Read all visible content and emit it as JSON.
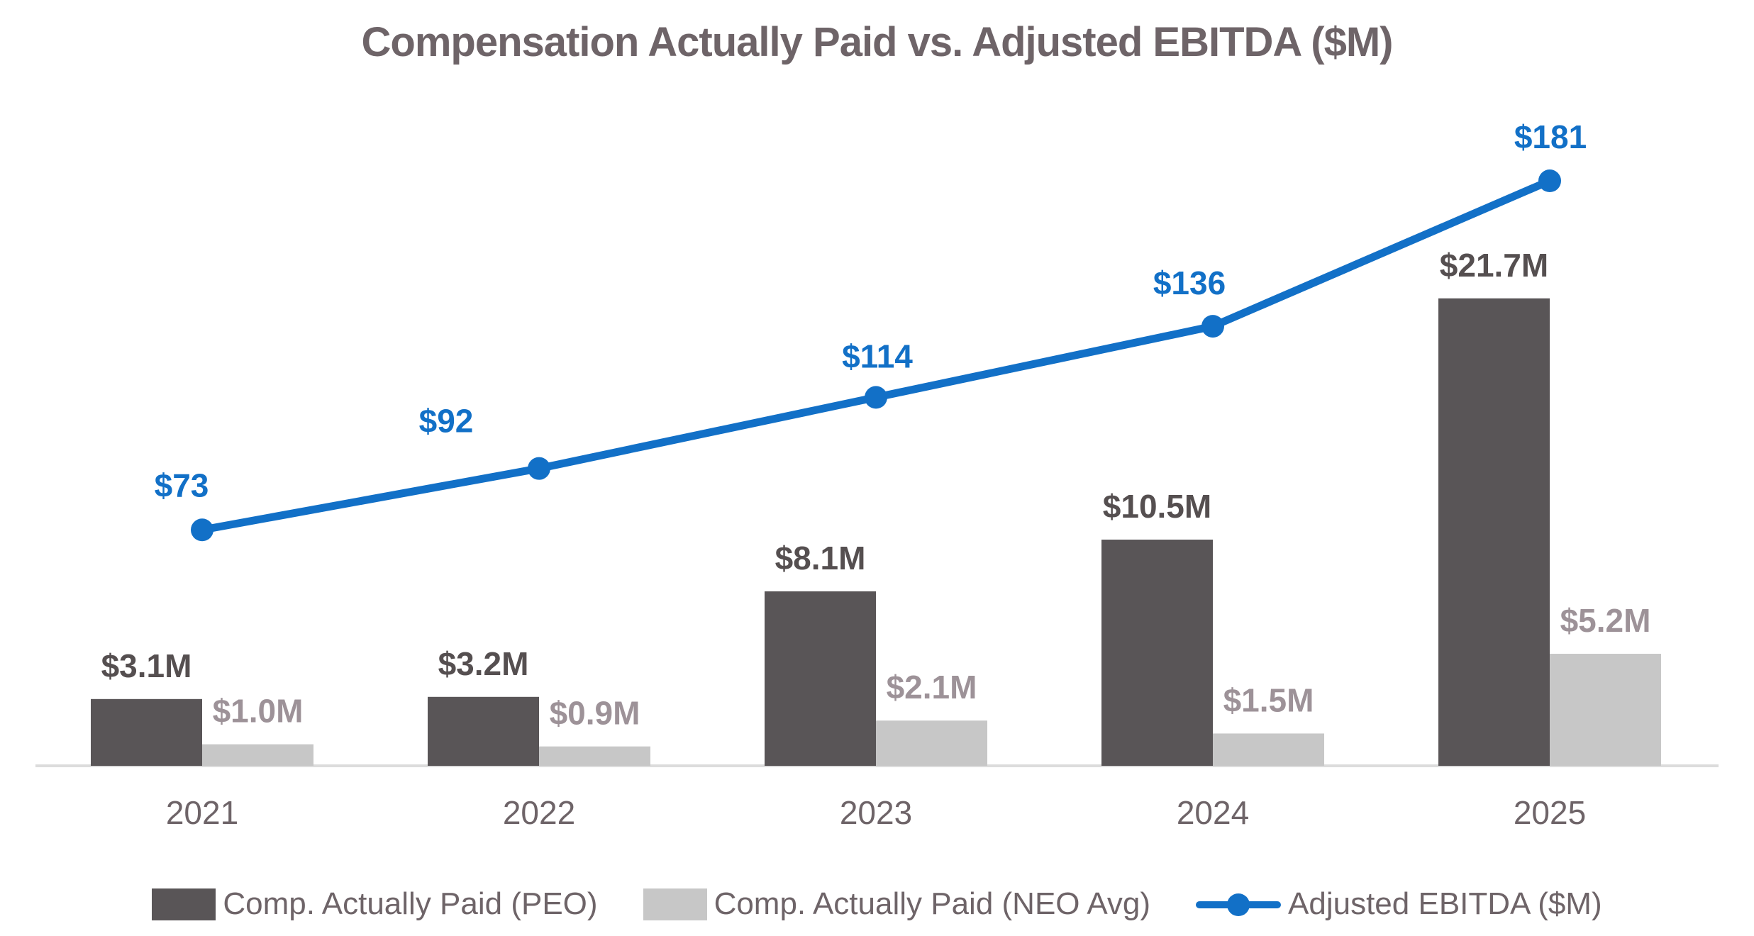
{
  "title": "Compensation Actually Paid vs. Adjusted EBITDA ($M)",
  "chart_data": {
    "type": "combo-bar-line",
    "title": "Compensation Actually Paid vs. Adjusted EBITDA ($M)",
    "xlabel": "",
    "ylabel": "",
    "grid": false,
    "legend_position": "bottom",
    "axis_line_color": "#dcdcdc",
    "text_color": "#6e6468",
    "categories": [
      "2021",
      "2022",
      "2023",
      "2024",
      "2025"
    ],
    "series": [
      {
        "name": "Comp. Actually Paid (PEO)",
        "type": "bar",
        "unit": "$M",
        "values": [
          3.1,
          3.2,
          8.1,
          10.5,
          21.7
        ],
        "labels": [
          "$3.1M",
          "$3.2M",
          "$8.1M",
          "$10.5M",
          "$21.7M"
        ],
        "color": "#595557",
        "label_color": "#554f50"
      },
      {
        "name": "Comp. Actually Paid (NEO Avg)",
        "type": "bar",
        "unit": "$M",
        "values": [
          1.0,
          0.9,
          2.1,
          1.5,
          5.2
        ],
        "labels": [
          "$1.0M",
          "$0.9M",
          "$2.1M",
          "$1.5M",
          "$5.2M"
        ],
        "color": "#c7c7c7",
        "label_color": "#9d9298"
      },
      {
        "name": "Adjusted EBITDA ($M)",
        "type": "line",
        "unit": "$M",
        "values": [
          73,
          92,
          114,
          136,
          181
        ],
        "labels": [
          "$73",
          "$92",
          "$114",
          "$136",
          "$181"
        ],
        "color": "#1270c7",
        "label_color": "#1270c7",
        "label_dx": [
          -29,
          -131,
          2,
          -33,
          1
        ],
        "label_dy": [
          -63,
          -67,
          -58,
          -61,
          -62
        ]
      }
    ]
  }
}
